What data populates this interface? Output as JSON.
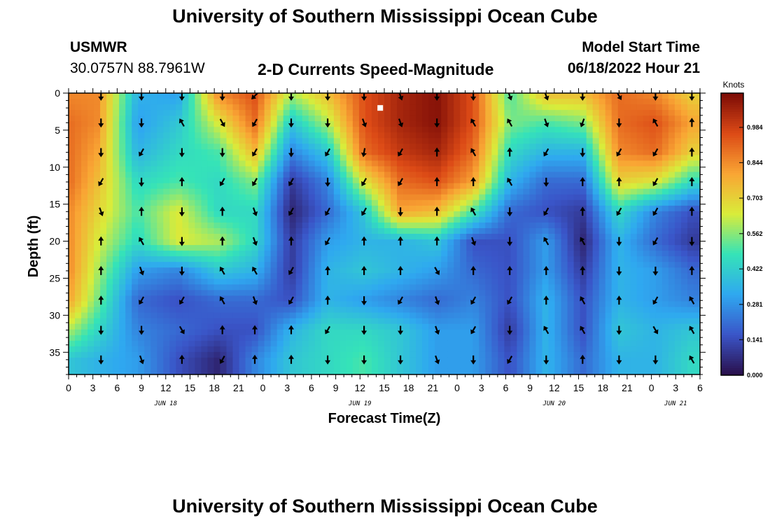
{
  "header": {
    "title": "University of Southern Mississippi Ocean Cube",
    "station": "USMWR",
    "coords": "30.0757N  88.7961W",
    "subtitle": "2-D Currents Speed-Magnitude",
    "model_label": "Model Start Time",
    "model_time": "06/18/2022 Hour 21"
  },
  "footer": {
    "title": "University of Southern Mississippi Ocean Cube"
  },
  "chart_data": {
    "type": "heatmap",
    "title": "2-D Currents Speed-Magnitude",
    "xlabel": "Forecast Time(Z)",
    "ylabel": "Depth (ft)",
    "colorbar_label": "Knots",
    "colorbar_ticks": [
      "0.000",
      "0.141",
      "0.281",
      "0.422",
      "0.562",
      "0.703",
      "0.844",
      "0.984"
    ],
    "colorbar_range": [
      0,
      1.12
    ],
    "colors": [
      "#2a0f4a",
      "#3a55c8",
      "#2fa8f0",
      "#35e3b8",
      "#d9ec3a",
      "#f9a534",
      "#dc4a16",
      "#7a0a06"
    ],
    "x_range_hours": [
      0,
      78
    ],
    "x_tick_labels": [
      "0",
      "3",
      "6",
      "9",
      "12",
      "15",
      "18",
      "21",
      "0",
      "3",
      "6",
      "9",
      "12",
      "15",
      "18",
      "21",
      "0",
      "3",
      "6",
      "9",
      "12",
      "15",
      "18",
      "21",
      "0",
      "3",
      "6"
    ],
    "date_labels": [
      {
        "label": "JUN 18",
        "hour": 12
      },
      {
        "label": "JUN 19",
        "hour": 36
      },
      {
        "label": "JUN 20",
        "hour": 60
      },
      {
        "label": "JUN 21",
        "hour": 75
      }
    ],
    "y_range_ft": [
      0,
      38
    ],
    "y_ticks": [
      0,
      5,
      10,
      15,
      20,
      25,
      30,
      35
    ],
    "grid_hours": [
      0,
      3.5,
      8.5,
      13.5,
      18.5,
      23,
      27.5,
      32,
      36.5,
      41,
      45.5,
      50,
      54.5,
      59,
      63.5,
      68,
      72.5,
      77
    ],
    "grid_depths": [
      0,
      4,
      8,
      12,
      16,
      20,
      24,
      28,
      32,
      36
    ],
    "speed_knots": [
      [
        0.85,
        0.85,
        0.35,
        0.3,
        0.85,
        0.95,
        0.6,
        0.75,
        0.95,
        1.05,
        1.1,
        0.95,
        0.5,
        0.75,
        0.75,
        0.9,
        0.85,
        0.7
      ],
      [
        0.9,
        0.85,
        0.3,
        0.4,
        0.65,
        0.9,
        0.4,
        0.6,
        0.95,
        1.05,
        1.1,
        0.95,
        0.55,
        0.5,
        0.55,
        0.9,
        0.95,
        0.8
      ],
      [
        0.9,
        0.8,
        0.35,
        0.45,
        0.5,
        0.75,
        0.25,
        0.4,
        0.9,
        1.0,
        1.05,
        0.9,
        0.45,
        0.35,
        0.35,
        0.85,
        0.9,
        0.7
      ],
      [
        0.9,
        0.75,
        0.45,
        0.5,
        0.45,
        0.55,
        0.1,
        0.25,
        0.65,
        0.9,
        0.95,
        0.8,
        0.35,
        0.2,
        0.2,
        0.7,
        0.65,
        0.45
      ],
      [
        0.85,
        0.7,
        0.5,
        0.65,
        0.45,
        0.45,
        0.05,
        0.2,
        0.4,
        0.8,
        0.75,
        0.5,
        0.2,
        0.15,
        0.1,
        0.45,
        0.25,
        0.15
      ],
      [
        0.85,
        0.65,
        0.45,
        0.65,
        0.6,
        0.45,
        0.1,
        0.3,
        0.35,
        0.35,
        0.4,
        0.15,
        0.15,
        0.3,
        0.05,
        0.35,
        0.2,
        0.1
      ],
      [
        0.85,
        0.6,
        0.3,
        0.25,
        0.4,
        0.35,
        0.1,
        0.35,
        0.4,
        0.35,
        0.3,
        0.2,
        0.15,
        0.3,
        0.1,
        0.35,
        0.3,
        0.2
      ],
      [
        0.8,
        0.55,
        0.2,
        0.15,
        0.2,
        0.2,
        0.15,
        0.35,
        0.3,
        0.25,
        0.2,
        0.25,
        0.15,
        0.35,
        0.15,
        0.35,
        0.3,
        0.25
      ],
      [
        0.6,
        0.45,
        0.25,
        0.2,
        0.15,
        0.15,
        0.35,
        0.45,
        0.45,
        0.4,
        0.3,
        0.3,
        0.1,
        0.35,
        0.15,
        0.4,
        0.35,
        0.4
      ],
      [
        0.4,
        0.35,
        0.3,
        0.15,
        0.05,
        0.25,
        0.4,
        0.45,
        0.5,
        0.4,
        0.3,
        0.3,
        0.15,
        0.35,
        0.2,
        0.35,
        0.35,
        0.45
      ]
    ],
    "arrow_hours": [
      4,
      9,
      14,
      19,
      23,
      27.5,
      32,
      36.5,
      41,
      45.5,
      50,
      54.5,
      59,
      63.5,
      68,
      72.5,
      77
    ],
    "arrow_depths": [
      0,
      4,
      8,
      12,
      16,
      20,
      24,
      28,
      32,
      36
    ],
    "arrow_dir_deg": [
      [
        180,
        180,
        180,
        180,
        135,
        180,
        180,
        180,
        200,
        180,
        180,
        200,
        200,
        180,
        210,
        180,
        180
      ],
      [
        180,
        180,
        30,
        210,
        150,
        180,
        180,
        200,
        200,
        180,
        30,
        30,
        200,
        160,
        180,
        30,
        0
      ],
      [
        180,
        150,
        180,
        180,
        150,
        180,
        150,
        170,
        150,
        0,
        30,
        0,
        150,
        180,
        150,
        150,
        0
      ],
      [
        150,
        180,
        0,
        150,
        150,
        150,
        180,
        150,
        150,
        0,
        0,
        30,
        180,
        0,
        0,
        150,
        0
      ],
      [
        200,
        0,
        180,
        0,
        200,
        150,
        150,
        150,
        180,
        0,
        30,
        180,
        150,
        0,
        150,
        150,
        0
      ],
      [
        0,
        30,
        180,
        0,
        200,
        0,
        150,
        0,
        0,
        0,
        200,
        180,
        30,
        30,
        180,
        150,
        180
      ],
      [
        0,
        200,
        180,
        30,
        30,
        150,
        0,
        0,
        0,
        210,
        0,
        0,
        0,
        0,
        180,
        180,
        0
      ],
      [
        0,
        150,
        150,
        30,
        200,
        150,
        0,
        180,
        150,
        200,
        150,
        150,
        0,
        30,
        0,
        150,
        30
      ],
      [
        180,
        180,
        210,
        0,
        0,
        0,
        150,
        180,
        180,
        200,
        150,
        180,
        30,
        30,
        180,
        210,
        30
      ],
      [
        180,
        200,
        0,
        150,
        0,
        0,
        180,
        180,
        180,
        200,
        180,
        150,
        180,
        0,
        180,
        180,
        30
      ]
    ],
    "marker": {
      "hour": 38.5,
      "depth": 2
    }
  }
}
